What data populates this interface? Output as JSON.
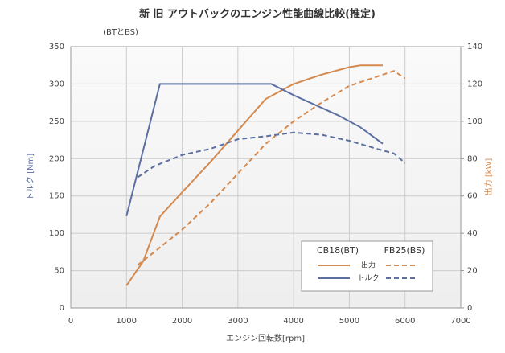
{
  "chart_data": {
    "type": "line",
    "title": "新 旧 アウトバックのエンジン性能曲線比較(推定)",
    "subtitle": "(BTとBS)",
    "x_label": "エンジン回転数[rpm]",
    "y_label": "トルク [Nm]",
    "y2_label": "出力 [kW]",
    "xlim": [
      0,
      7000
    ],
    "xticks": [
      0,
      1000,
      2000,
      3000,
      4000,
      5000,
      6000,
      7000
    ],
    "ylim": [
      0,
      350
    ],
    "yticks": [
      0,
      50,
      100,
      150,
      200,
      250,
      300,
      350
    ],
    "y2lim": [
      0,
      140
    ],
    "y2ticks": [
      0,
      20,
      40,
      60,
      80,
      100,
      120,
      140
    ],
    "grid": true,
    "legend_columns": [
      "CB18(BT)",
      "FB25(BS)"
    ],
    "legend_rows": [
      "出力",
      "トルク"
    ],
    "series": [
      {
        "color": "#d4894f",
        "dash": "solid",
        "axis": "y2",
        "x": [
          1000,
          1300,
          1600,
          2000,
          2500,
          3000,
          3500,
          4000,
          4500,
          5000,
          5200,
          5600
        ],
        "values": [
          12,
          25,
          49,
          62,
          78,
          95,
          112,
          120,
          125,
          129,
          130,
          130
        ]
      },
      {
        "color": "#5b6fa0",
        "dash": "solid",
        "axis": "y",
        "x": [
          1000,
          1600,
          3600,
          4000,
          4800,
          5200,
          5600
        ],
        "values": [
          123,
          300,
          300,
          285,
          258,
          242,
          220
        ]
      },
      {
        "color": "#d4894f",
        "dash": "dashed",
        "axis": "y2",
        "x": [
          1200,
          1500,
          2000,
          2500,
          3000,
          3500,
          4000,
          4500,
          5000,
          5500,
          5800,
          6000
        ],
        "values": [
          23,
          30,
          42,
          56,
          72,
          88,
          100,
          110,
          119,
          124,
          127,
          123
        ]
      },
      {
        "color": "#5b6fa0",
        "dash": "dashed",
        "axis": "y",
        "x": [
          1200,
          1500,
          2000,
          2500,
          3000,
          3500,
          4000,
          4500,
          5000,
          5500,
          5800,
          6000
        ],
        "values": [
          175,
          190,
          205,
          213,
          226,
          230,
          235,
          232,
          224,
          213,
          207,
          194
        ]
      }
    ]
  }
}
